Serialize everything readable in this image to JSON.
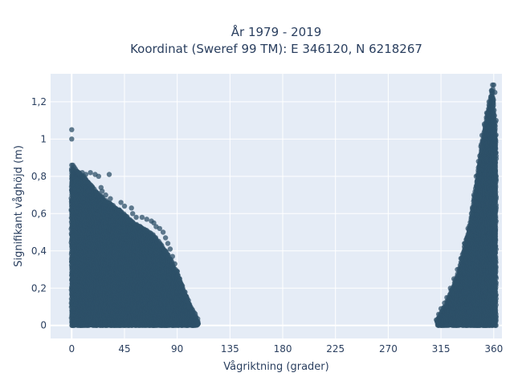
{
  "chart_data": {
    "type": "scatter",
    "title_line1": "År 1979 - 2019",
    "title_line2": "Koordinat (Sweref 99 TM): E 346120, N 6218267",
    "xlabel": "Vågriktning (grader)",
    "ylabel": "Signifikant våghöjd (m)",
    "xlim": [
      -18,
      367
    ],
    "ylim": [
      -0.07,
      1.35
    ],
    "x_ticks": [
      0,
      45,
      90,
      135,
      180,
      225,
      270,
      315,
      360
    ],
    "x_tick_labels": [
      "0",
      "45",
      "90",
      "135",
      "180",
      "225",
      "270",
      "315",
      "360"
    ],
    "y_ticks": [
      0,
      0.2,
      0.4,
      0.6,
      0.8,
      1.0,
      1.2
    ],
    "y_tick_labels": [
      "0",
      "0,2",
      "0,4",
      "0,6",
      "0,8",
      "1",
      "1,2"
    ],
    "grid": true,
    "marker_color": "#2e5068",
    "plot_background": "#e5ecf6",
    "series": [
      {
        "points": [
          [
            0,
            1.05
          ],
          [
            0,
            1.0
          ],
          [
            0,
            0.86
          ],
          [
            1,
            0.86
          ],
          [
            2,
            0.85
          ],
          [
            3,
            0.84
          ],
          [
            4,
            0.83
          ],
          [
            6,
            0.82
          ],
          [
            9,
            0.82
          ],
          [
            12,
            0.81
          ],
          [
            16,
            0.82
          ],
          [
            20,
            0.81
          ],
          [
            23,
            0.8
          ],
          [
            32,
            0.81
          ],
          [
            25,
            0.74
          ],
          [
            26,
            0.72
          ],
          [
            29,
            0.7
          ],
          [
            33,
            0.68
          ],
          [
            42,
            0.66
          ],
          [
            45,
            0.64
          ],
          [
            51,
            0.63
          ],
          [
            52,
            0.6
          ],
          [
            55,
            0.58
          ],
          [
            60,
            0.58
          ],
          [
            64,
            0.57
          ],
          [
            68,
            0.56
          ],
          [
            70,
            0.55
          ],
          [
            72,
            0.53
          ],
          [
            75,
            0.52
          ],
          [
            78,
            0.5
          ],
          [
            80,
            0.47
          ],
          [
            82,
            0.44
          ],
          [
            84,
            0.41
          ],
          [
            86,
            0.37
          ],
          [
            88,
            0.33
          ],
          [
            90,
            0.29
          ],
          [
            92,
            0.25
          ],
          [
            94,
            0.21
          ],
          [
            96,
            0.17
          ],
          [
            98,
            0.13
          ],
          [
            100,
            0.1
          ],
          [
            102,
            0.07
          ],
          [
            104,
            0.05
          ],
          [
            106,
            0.03
          ],
          [
            107,
            0.02
          ],
          [
            108,
            0.01
          ],
          [
            311,
            0.03
          ],
          [
            313,
            0.06
          ],
          [
            315,
            0.09
          ],
          [
            318,
            0.12
          ],
          [
            320,
            0.15
          ],
          [
            323,
            0.2
          ],
          [
            326,
            0.25
          ],
          [
            329,
            0.3
          ],
          [
            332,
            0.36
          ],
          [
            335,
            0.44
          ],
          [
            338,
            0.52
          ],
          [
            341,
            0.6
          ],
          [
            343,
            0.7
          ],
          [
            345,
            0.8
          ],
          [
            347,
            0.88
          ],
          [
            349,
            0.96
          ],
          [
            350,
            1.02
          ],
          [
            352,
            1.08
          ],
          [
            354,
            1.14
          ],
          [
            356,
            1.2
          ],
          [
            358,
            1.26
          ],
          [
            359,
            1.29
          ],
          [
            360,
            1.29
          ],
          [
            361,
            1.25
          ],
          [
            362,
            1.1
          ],
          [
            362,
            0.8
          ],
          [
            361,
            0.5
          ],
          [
            360,
            0.02
          ],
          [
            330,
            0.01
          ],
          [
            320,
            0.0
          ]
        ]
      }
    ],
    "dense_regions": [
      {
        "x_from": 0,
        "x_to": 108,
        "y_min": 0,
        "y_max_by_x": [
          [
            0,
            0.84
          ],
          [
            10,
            0.8
          ],
          [
            20,
            0.72
          ],
          [
            30,
            0.66
          ],
          [
            40,
            0.62
          ],
          [
            50,
            0.56
          ],
          [
            60,
            0.52
          ],
          [
            70,
            0.48
          ],
          [
            80,
            0.4
          ],
          [
            90,
            0.28
          ],
          [
            100,
            0.12
          ],
          [
            108,
            0.02
          ]
        ]
      },
      {
        "x_from": 312,
        "x_to": 362,
        "y_min": 0,
        "y_max_by_x": [
          [
            312,
            0.03
          ],
          [
            320,
            0.12
          ],
          [
            330,
            0.28
          ],
          [
            340,
            0.55
          ],
          [
            345,
            0.75
          ],
          [
            350,
            0.98
          ],
          [
            355,
            1.15
          ],
          [
            359,
            1.27
          ],
          [
            362,
            1.0
          ]
        ]
      }
    ]
  }
}
